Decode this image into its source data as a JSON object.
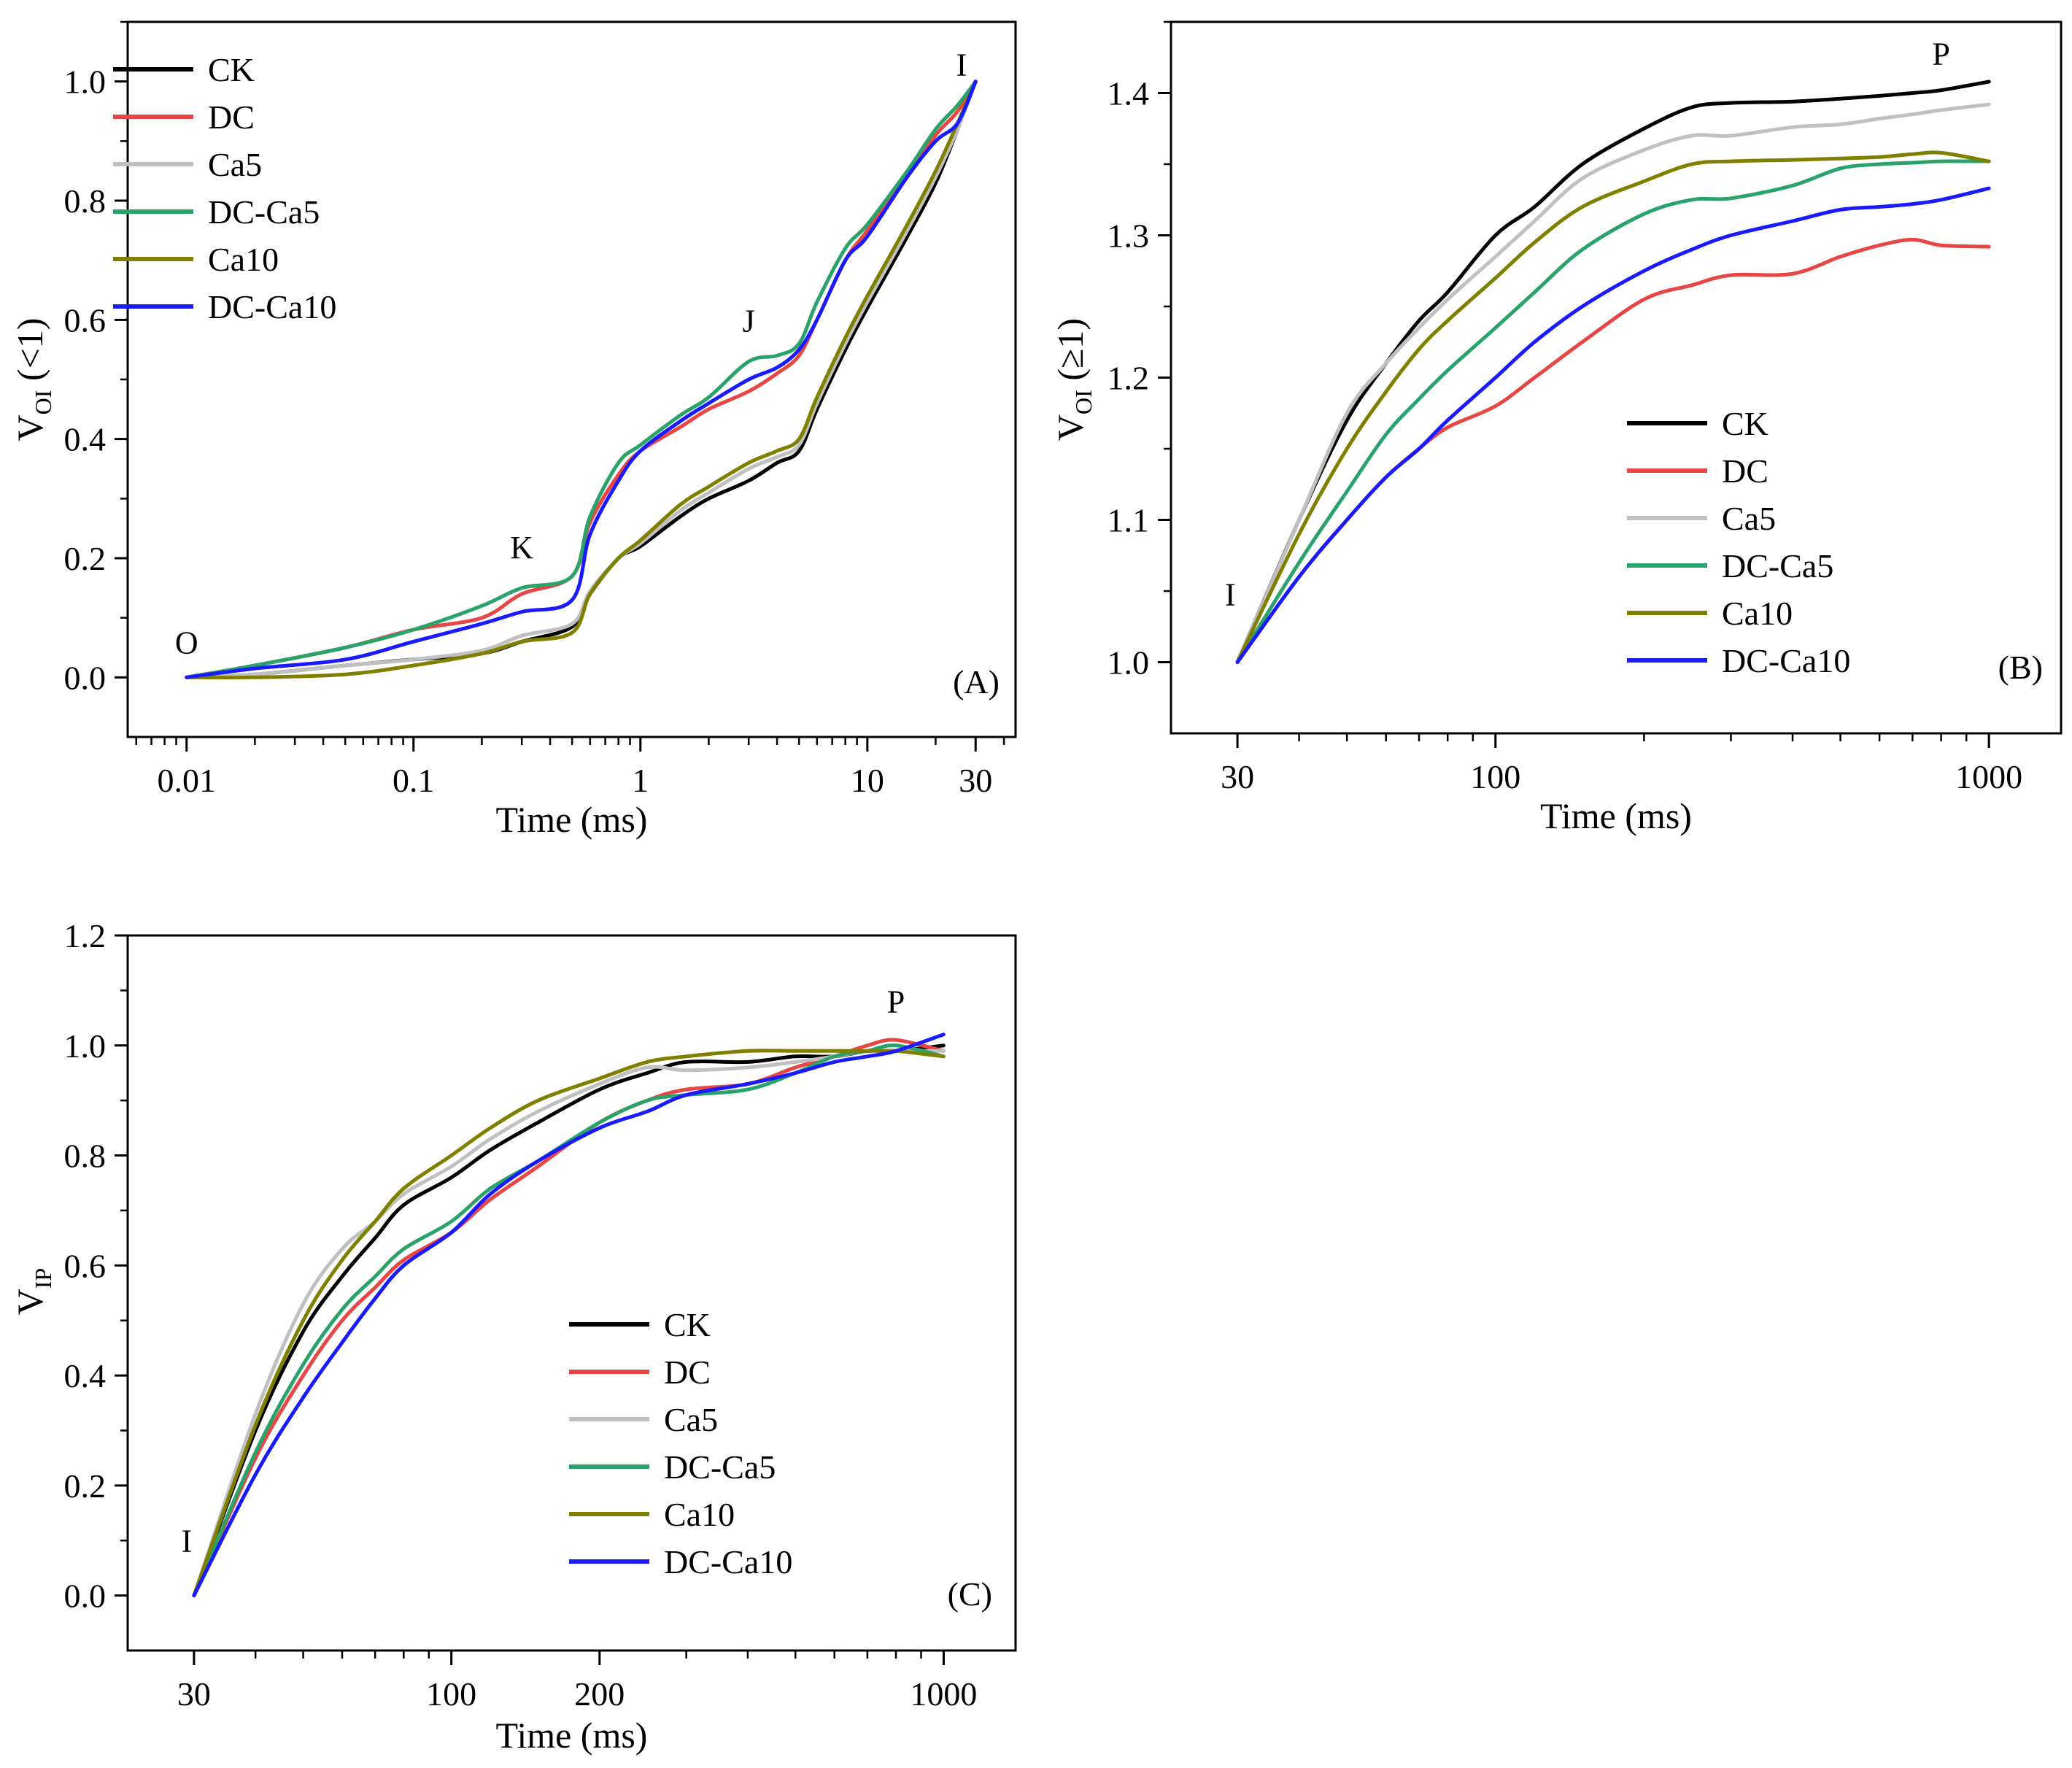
{
  "figure": {
    "panel_count": 3
  },
  "chart_data": [
    {
      "type": "line",
      "panel_label": "(A)",
      "xlabel": "Time (ms)",
      "ylabel_main": "V",
      "ylabel_sub": "OI",
      "ylabel_suffix": " (<1)",
      "xscale": "log",
      "xlim": [
        0.0055,
        45
      ],
      "ylim": [
        -0.1,
        1.1
      ],
      "yticks": [
        0.0,
        0.2,
        0.4,
        0.6,
        0.8,
        1.0
      ],
      "ytick_labels": [
        "0.0",
        "0.2",
        "0.4",
        "0.6",
        "0.8",
        "1.0"
      ],
      "xticks": [
        0.01,
        0.1,
        1,
        10,
        30
      ],
      "xtick_labels": [
        "0.01",
        "0.1",
        "1",
        "10",
        "30"
      ],
      "annotations": [
        {
          "text": "O",
          "x": 0.01,
          "y": 0.04
        },
        {
          "text": "K",
          "x": 0.3,
          "y": 0.2
        },
        {
          "text": "J",
          "x": 3,
          "y": 0.58
        },
        {
          "text": "I",
          "x": 26,
          "y": 1.01
        }
      ],
      "legend_position": "upper-left",
      "series": [
        {
          "name": "CK",
          "color": "#000000",
          "x": [
            0.01,
            0.02,
            0.05,
            0.1,
            0.2,
            0.3,
            0.5,
            0.6,
            0.8,
            1,
            1.5,
            2,
            3,
            4,
            5,
            6,
            8,
            10,
            15,
            20,
            25,
            30
          ],
          "y": [
            0,
            0.005,
            0.02,
            0.03,
            0.04,
            0.06,
            0.085,
            0.14,
            0.2,
            0.22,
            0.27,
            0.3,
            0.33,
            0.36,
            0.38,
            0.45,
            0.55,
            0.62,
            0.74,
            0.83,
            0.92,
            1.0
          ]
        },
        {
          "name": "DC",
          "color": "#e84545",
          "x": [
            0.01,
            0.02,
            0.05,
            0.1,
            0.2,
            0.3,
            0.5,
            0.6,
            0.8,
            1,
            1.5,
            2,
            3,
            4,
            5,
            6,
            8,
            10,
            15,
            20,
            25,
            30
          ],
          "y": [
            0,
            0.02,
            0.05,
            0.08,
            0.1,
            0.14,
            0.17,
            0.26,
            0.34,
            0.38,
            0.42,
            0.45,
            0.48,
            0.51,
            0.54,
            0.6,
            0.7,
            0.75,
            0.84,
            0.91,
            0.95,
            1.0
          ]
        },
        {
          "name": "Ca5",
          "color": "#c0c0c0",
          "x": [
            0.01,
            0.02,
            0.05,
            0.1,
            0.2,
            0.3,
            0.5,
            0.6,
            0.8,
            1,
            1.5,
            2,
            3,
            4,
            5,
            6,
            8,
            10,
            15,
            20,
            25,
            30
          ],
          "y": [
            0,
            0.005,
            0.02,
            0.03,
            0.045,
            0.07,
            0.09,
            0.145,
            0.2,
            0.225,
            0.28,
            0.31,
            0.35,
            0.37,
            0.39,
            0.46,
            0.56,
            0.63,
            0.75,
            0.84,
            0.92,
            1.0
          ]
        },
        {
          "name": "DC-Ca5",
          "color": "#2aa36b",
          "x": [
            0.01,
            0.02,
            0.05,
            0.1,
            0.2,
            0.3,
            0.5,
            0.6,
            0.8,
            1,
            1.5,
            2,
            3,
            4,
            5,
            6,
            8,
            10,
            15,
            20,
            25,
            30
          ],
          "y": [
            0,
            0.02,
            0.05,
            0.08,
            0.12,
            0.15,
            0.17,
            0.27,
            0.36,
            0.39,
            0.44,
            0.47,
            0.53,
            0.54,
            0.56,
            0.63,
            0.72,
            0.76,
            0.85,
            0.92,
            0.96,
            1.0
          ]
        },
        {
          "name": "Ca10",
          "color": "#808000",
          "x": [
            0.01,
            0.02,
            0.05,
            0.1,
            0.2,
            0.3,
            0.5,
            0.6,
            0.8,
            1,
            1.5,
            2,
            3,
            4,
            5,
            6,
            8,
            10,
            15,
            20,
            25,
            30
          ],
          "y": [
            0,
            0,
            0.005,
            0.02,
            0.04,
            0.06,
            0.075,
            0.14,
            0.2,
            0.23,
            0.29,
            0.32,
            0.36,
            0.38,
            0.4,
            0.47,
            0.57,
            0.64,
            0.76,
            0.85,
            0.93,
            1.0
          ]
        },
        {
          "name": "DC-Ca10",
          "color": "#1a1aff",
          "x": [
            0.01,
            0.02,
            0.05,
            0.1,
            0.2,
            0.3,
            0.5,
            0.6,
            0.8,
            1,
            1.5,
            2,
            3,
            4,
            5,
            6,
            8,
            10,
            15,
            20,
            25,
            30
          ],
          "y": [
            0,
            0.015,
            0.03,
            0.06,
            0.09,
            0.11,
            0.13,
            0.24,
            0.33,
            0.38,
            0.43,
            0.46,
            0.5,
            0.52,
            0.55,
            0.6,
            0.7,
            0.74,
            0.84,
            0.9,
            0.93,
            1.0
          ]
        }
      ]
    },
    {
      "type": "line",
      "panel_label": "(B)",
      "xlabel": "Time (ms)",
      "ylabel_main": "V",
      "ylabel_sub": "OI",
      "ylabel_suffix": " (≥1)",
      "xscale": "log",
      "xlim": [
        22,
        1400
      ],
      "ylim": [
        0.95,
        1.45
      ],
      "yticks": [
        1.0,
        1.1,
        1.2,
        1.3,
        1.4
      ],
      "ytick_labels": [
        "1.0",
        "1.1",
        "1.2",
        "1.3",
        "1.4"
      ],
      "xticks": [
        30,
        100,
        1000
      ],
      "xtick_labels": [
        "30",
        "100",
        "1000"
      ],
      "annotations": [
        {
          "text": "I",
          "x": 29,
          "y": 1.04
        },
        {
          "text": "P",
          "x": 800,
          "y": 1.42
        }
      ],
      "legend_position": "lower-right",
      "series": [
        {
          "name": "CK",
          "color": "#000000",
          "x": [
            30,
            40,
            50,
            60,
            70,
            80,
            100,
            120,
            150,
            200,
            250,
            300,
            400,
            500,
            600,
            700,
            800,
            1000
          ],
          "y": [
            1.0,
            1.1,
            1.17,
            1.21,
            1.24,
            1.26,
            1.3,
            1.32,
            1.35,
            1.375,
            1.39,
            1.393,
            1.394,
            1.396,
            1.398,
            1.4,
            1.402,
            1.408
          ]
        },
        {
          "name": "DC",
          "color": "#e84545",
          "x": [
            30,
            40,
            50,
            60,
            70,
            80,
            100,
            120,
            150,
            200,
            250,
            300,
            400,
            500,
            600,
            700,
            800,
            1000
          ],
          "y": [
            1.0,
            1.06,
            1.1,
            1.13,
            1.15,
            1.165,
            1.18,
            1.2,
            1.225,
            1.255,
            1.265,
            1.272,
            1.273,
            1.285,
            1.293,
            1.297,
            1.293,
            1.292
          ]
        },
        {
          "name": "Ca5",
          "color": "#c0c0c0",
          "x": [
            30,
            40,
            50,
            60,
            70,
            80,
            100,
            120,
            150,
            200,
            250,
            300,
            400,
            500,
            600,
            700,
            800,
            1000
          ],
          "y": [
            1.0,
            1.1,
            1.175,
            1.21,
            1.235,
            1.255,
            1.285,
            1.31,
            1.34,
            1.36,
            1.37,
            1.37,
            1.376,
            1.378,
            1.382,
            1.385,
            1.388,
            1.392
          ]
        },
        {
          "name": "DC-Ca5",
          "color": "#2aa36b",
          "x": [
            30,
            40,
            50,
            60,
            70,
            80,
            100,
            120,
            150,
            200,
            250,
            300,
            400,
            500,
            600,
            700,
            800,
            1000
          ],
          "y": [
            1.0,
            1.07,
            1.12,
            1.16,
            1.185,
            1.205,
            1.235,
            1.26,
            1.29,
            1.315,
            1.325,
            1.326,
            1.335,
            1.347,
            1.35,
            1.351,
            1.352,
            1.352
          ]
        },
        {
          "name": "Ca10",
          "color": "#808000",
          "x": [
            30,
            40,
            50,
            60,
            70,
            80,
            100,
            120,
            150,
            200,
            250,
            300,
            400,
            500,
            600,
            700,
            800,
            1000
          ],
          "y": [
            1.0,
            1.09,
            1.15,
            1.19,
            1.22,
            1.24,
            1.27,
            1.295,
            1.32,
            1.338,
            1.35,
            1.352,
            1.353,
            1.354,
            1.355,
            1.357,
            1.358,
            1.352
          ]
        },
        {
          "name": "DC-Ca10",
          "color": "#1a1aff",
          "x": [
            30,
            40,
            50,
            60,
            70,
            80,
            100,
            120,
            150,
            200,
            250,
            300,
            400,
            500,
            600,
            700,
            800,
            1000
          ],
          "y": [
            1.0,
            1.06,
            1.1,
            1.13,
            1.15,
            1.17,
            1.2,
            1.225,
            1.25,
            1.275,
            1.29,
            1.3,
            1.31,
            1.318,
            1.32,
            1.322,
            1.325,
            1.333
          ]
        }
      ]
    },
    {
      "type": "line",
      "panel_label": "(C)",
      "xlabel": "Time (ms)",
      "ylabel_main": "V",
      "ylabel_sub": "IP",
      "ylabel_suffix": "",
      "xscale": "log",
      "xlim": [
        22,
        1400
      ],
      "ylim": [
        -0.1,
        1.2
      ],
      "yticks": [
        0.0,
        0.2,
        0.4,
        0.6,
        0.8,
        1.0,
        1.2
      ],
      "ytick_labels": [
        "0.0",
        "0.2",
        "0.4",
        "0.6",
        "0.8",
        "1.0",
        "1.2"
      ],
      "xticks": [
        30,
        100,
        200,
        1000
      ],
      "xtick_labels": [
        "30",
        "100",
        "200",
        "1000"
      ],
      "annotations": [
        {
          "text": "I",
          "x": 29,
          "y": 0.08
        },
        {
          "text": "P",
          "x": 800,
          "y": 1.06
        }
      ],
      "legend_position": "lower-right",
      "series": [
        {
          "name": "CK",
          "color": "#000000",
          "x": [
            30,
            40,
            50,
            60,
            70,
            80,
            100,
            120,
            150,
            200,
            250,
            300,
            400,
            500,
            600,
            700,
            800,
            1000
          ],
          "y": [
            0,
            0.3,
            0.48,
            0.58,
            0.65,
            0.71,
            0.76,
            0.81,
            0.86,
            0.92,
            0.95,
            0.97,
            0.97,
            0.98,
            0.98,
            0.99,
            0.99,
            1.0
          ]
        },
        {
          "name": "DC",
          "color": "#e84545",
          "x": [
            30,
            40,
            50,
            60,
            70,
            80,
            100,
            120,
            150,
            200,
            250,
            300,
            400,
            500,
            600,
            700,
            800,
            1000
          ],
          "y": [
            0,
            0.25,
            0.4,
            0.5,
            0.56,
            0.61,
            0.66,
            0.72,
            0.78,
            0.86,
            0.9,
            0.92,
            0.93,
            0.96,
            0.98,
            1.0,
            1.01,
            0.99
          ]
        },
        {
          "name": "Ca5",
          "color": "#c0c0c0",
          "x": [
            30,
            40,
            50,
            60,
            70,
            80,
            100,
            120,
            150,
            200,
            250,
            300,
            400,
            500,
            600,
            700,
            800,
            1000
          ],
          "y": [
            0,
            0.33,
            0.53,
            0.63,
            0.68,
            0.73,
            0.78,
            0.83,
            0.88,
            0.93,
            0.96,
            0.955,
            0.96,
            0.97,
            0.98,
            0.99,
            0.99,
            0.99
          ]
        },
        {
          "name": "DC-Ca5",
          "color": "#2aa36b",
          "x": [
            30,
            40,
            50,
            60,
            70,
            80,
            100,
            120,
            150,
            200,
            250,
            300,
            400,
            500,
            600,
            700,
            800,
            1000
          ],
          "y": [
            0,
            0.26,
            0.42,
            0.52,
            0.58,
            0.63,
            0.68,
            0.74,
            0.79,
            0.86,
            0.9,
            0.91,
            0.92,
            0.95,
            0.98,
            0.99,
            1.0,
            0.98
          ]
        },
        {
          "name": "Ca10",
          "color": "#808000",
          "x": [
            30,
            40,
            50,
            60,
            70,
            80,
            100,
            120,
            150,
            200,
            250,
            300,
            400,
            500,
            600,
            700,
            800,
            1000
          ],
          "y": [
            0,
            0.31,
            0.5,
            0.61,
            0.68,
            0.74,
            0.8,
            0.85,
            0.9,
            0.94,
            0.97,
            0.98,
            0.99,
            0.99,
            0.99,
            0.99,
            0.99,
            0.98
          ]
        },
        {
          "name": "DC-Ca10",
          "color": "#1a1aff",
          "x": [
            30,
            40,
            50,
            60,
            70,
            80,
            100,
            120,
            150,
            200,
            250,
            300,
            400,
            500,
            600,
            700,
            800,
            1000
          ],
          "y": [
            0,
            0.22,
            0.36,
            0.46,
            0.54,
            0.6,
            0.66,
            0.73,
            0.79,
            0.85,
            0.88,
            0.91,
            0.93,
            0.95,
            0.97,
            0.98,
            0.99,
            1.02
          ]
        }
      ]
    }
  ]
}
